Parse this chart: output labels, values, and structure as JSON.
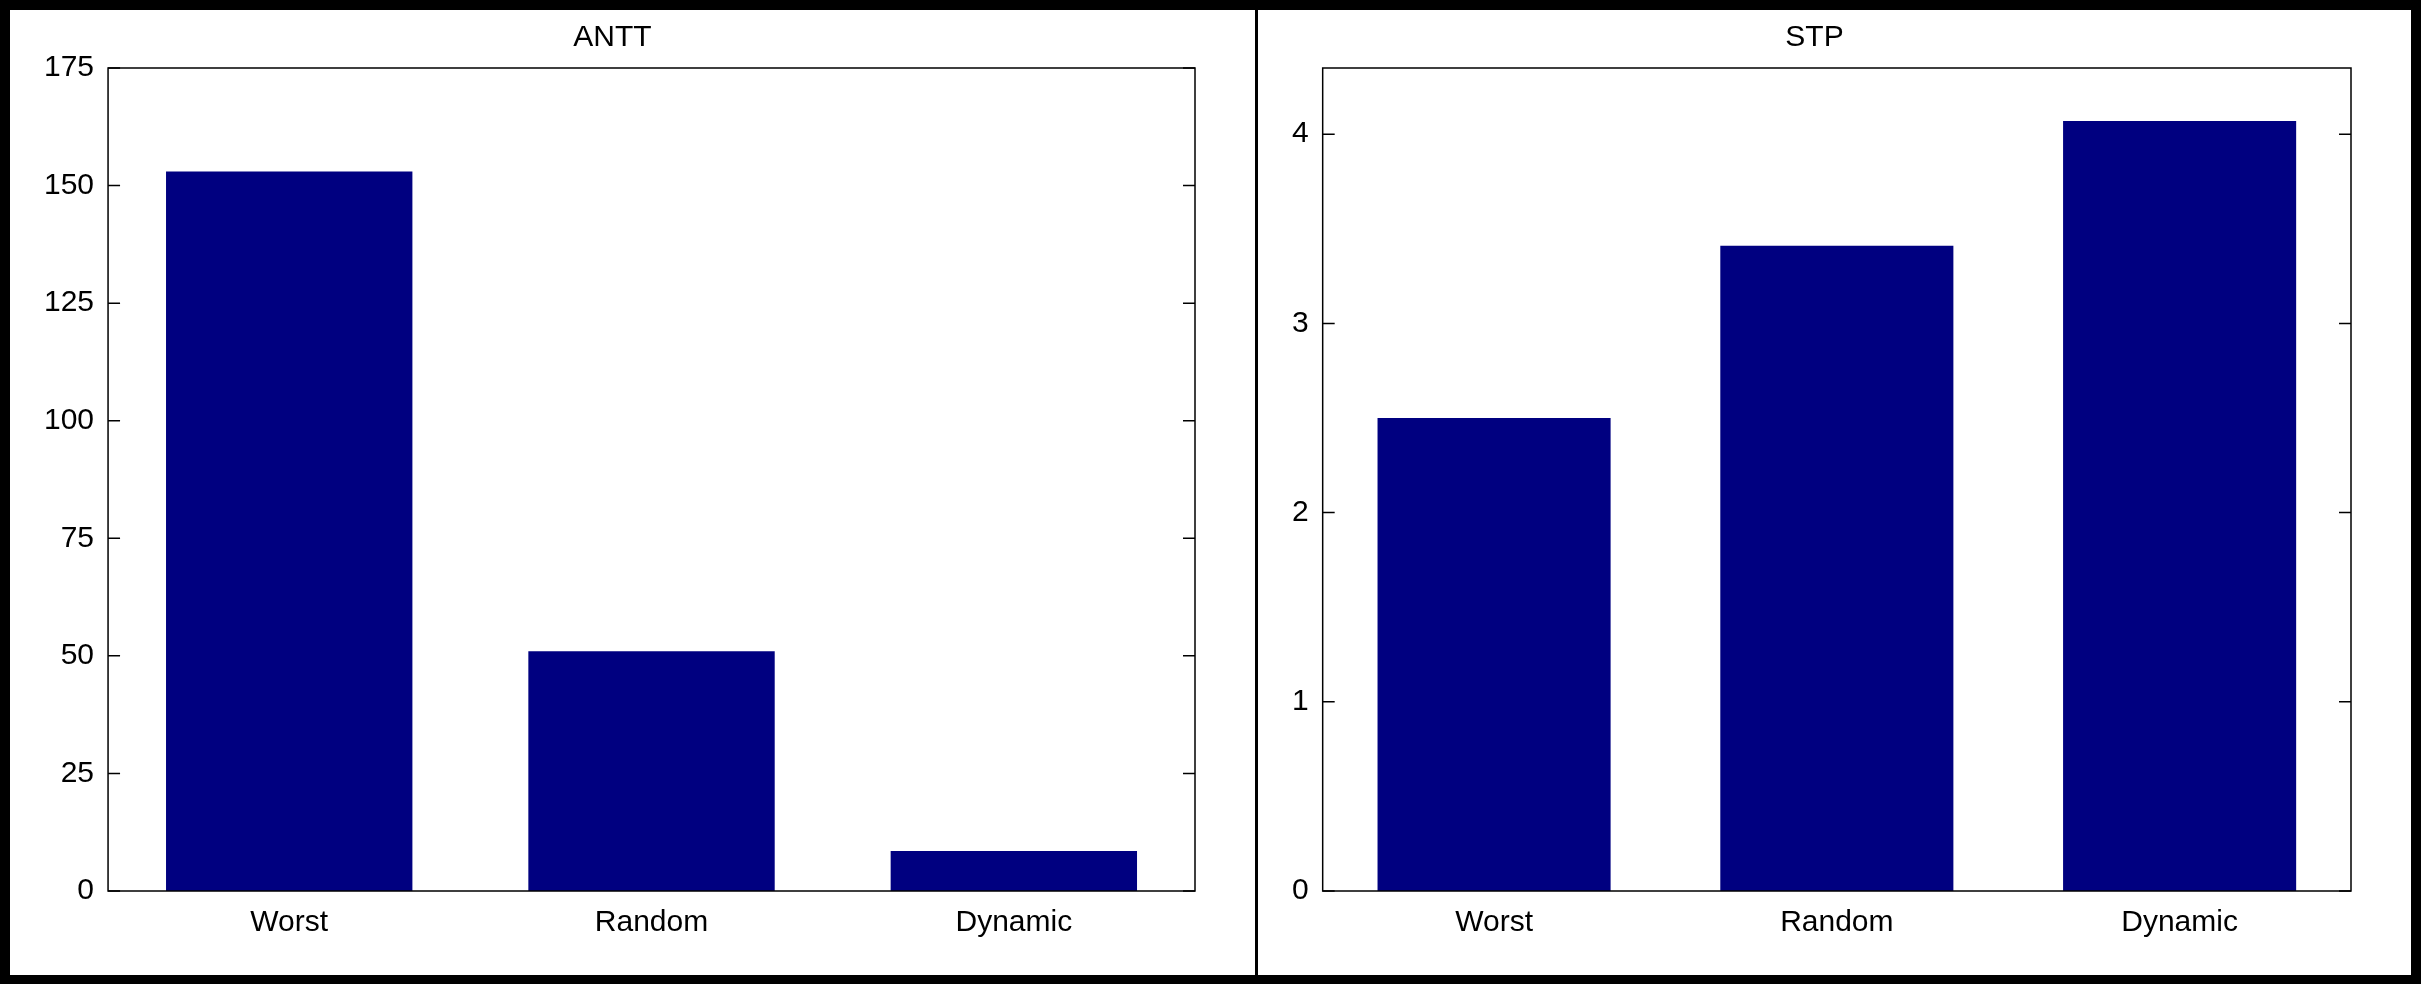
{
  "chart_data": [
    {
      "type": "bar",
      "title": "ANTT",
      "categories": [
        "Worst",
        "Random",
        "Dynamic"
      ],
      "values": [
        153,
        51,
        8.5
      ],
      "color": "#000080",
      "ylim": [
        0,
        175
      ],
      "yticks": [
        0,
        25,
        50,
        75,
        100,
        125,
        150,
        175
      ],
      "grid": false,
      "legend": false
    },
    {
      "type": "bar",
      "title": "STP",
      "categories": [
        "Worst",
        "Random",
        "Dynamic"
      ],
      "values": [
        2.5,
        3.41,
        4.07
      ],
      "color": "#000080",
      "ylim": [
        0,
        4.35
      ],
      "yticks": [
        0,
        1,
        2,
        3,
        4
      ],
      "grid": false,
      "legend": false
    }
  ]
}
